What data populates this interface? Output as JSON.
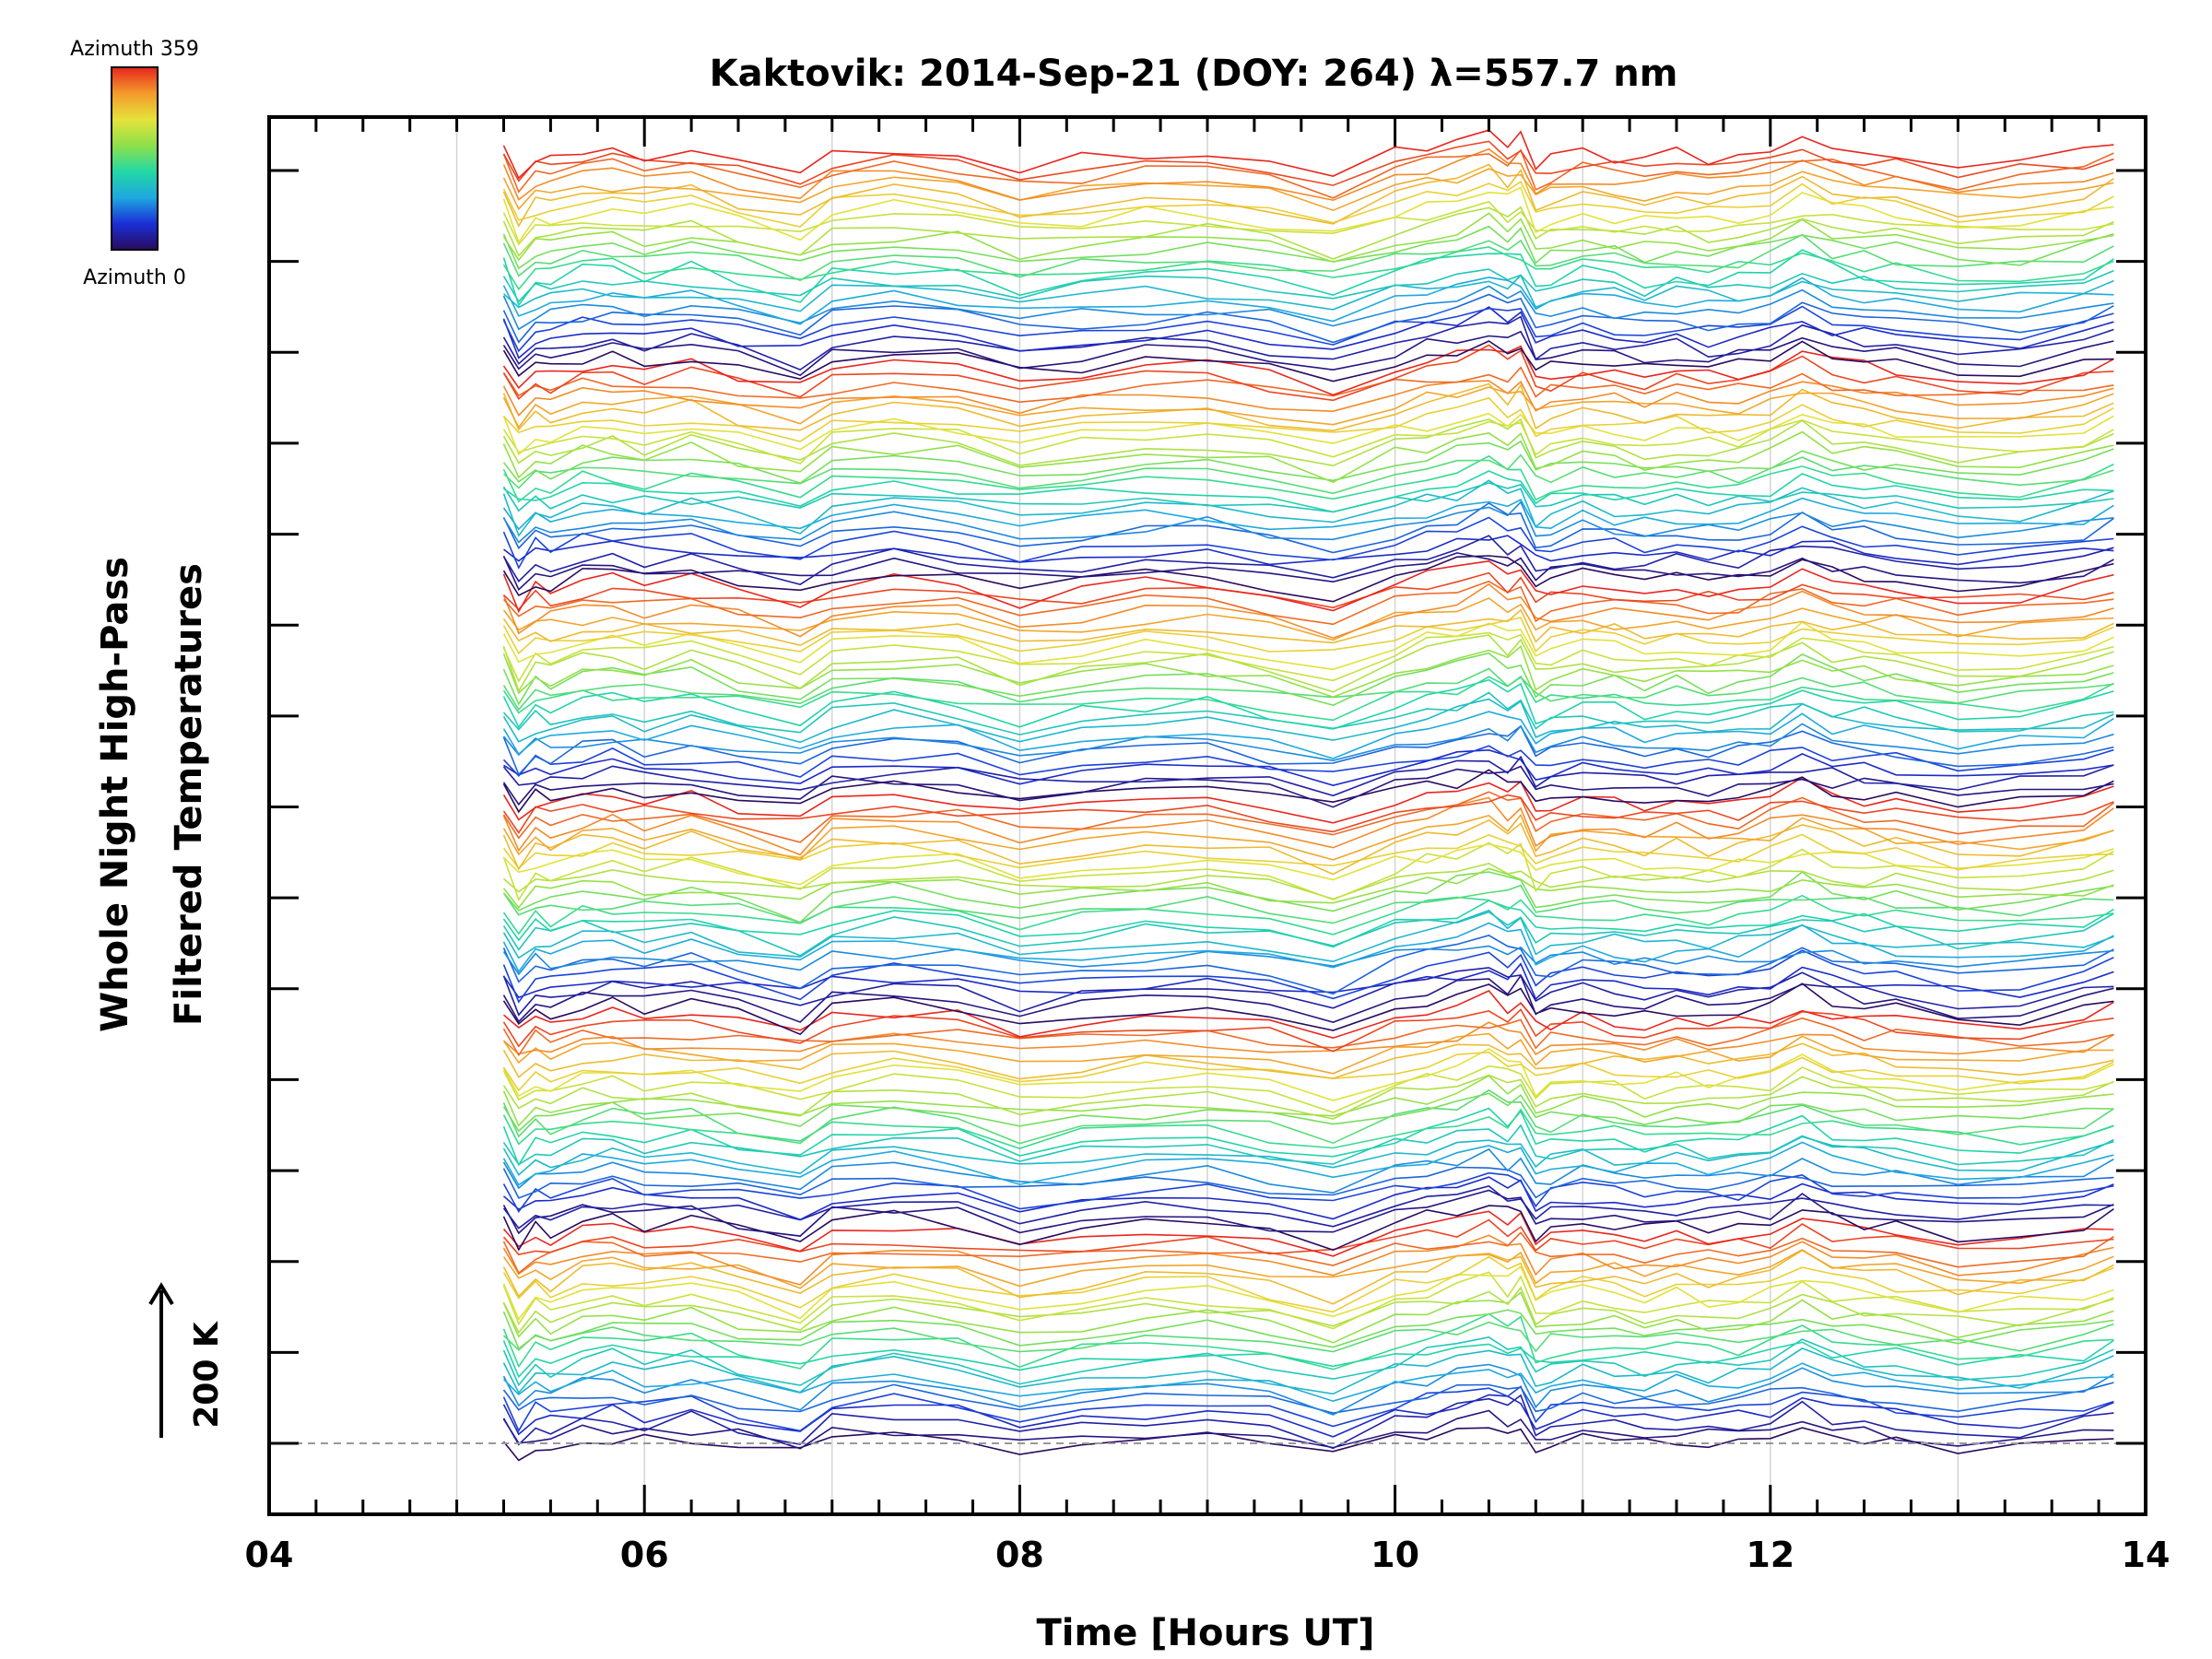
{
  "chart_data": {
    "type": "line",
    "title": "Kaktovik: 2014-Sep-21 (DOY: 264) λ=557.7 nm",
    "xlabel": "Time [Hours UT]",
    "ylabel_line1": "Whole Night High-Pass",
    "ylabel_line2": "Filtered Temperatures",
    "xlim": [
      4,
      14
    ],
    "x_tick_labels": [
      "04",
      "06",
      "08",
      "10",
      "12",
      "14"
    ],
    "x_major_ticks": [
      4,
      6,
      8,
      10,
      12,
      14
    ],
    "x_minor_step": 0.25,
    "vertical_gridlines": [
      5,
      6,
      7,
      8,
      9,
      10,
      11,
      12,
      13
    ],
    "y_tick_count": 15,
    "offset_scale_label": "200 K",
    "colorbar": {
      "label_top": "Azimuth 359",
      "label_bottom": "Azimuth 0",
      "colormap": [
        "#2a0a5e",
        "#1a2fd6",
        "#1ea8e0",
        "#22d8a4",
        "#8ee04a",
        "#e6e23a",
        "#f39a2b",
        "#e8261e"
      ]
    },
    "series_description": "Stacked high-pass filtered temperature traces, one per azimuth, coloured by azimuth (0-359) and vertically offset.",
    "time": [
      5.25,
      5.33,
      5.42,
      5.5,
      5.67,
      5.83,
      6.0,
      6.25,
      6.5,
      6.83,
      7.0,
      7.33,
      7.67,
      8.0,
      8.33,
      8.67,
      9.0,
      9.33,
      9.67,
      10.0,
      10.17,
      10.33,
      10.5,
      10.6,
      10.67,
      10.75,
      10.83,
      11.0,
      11.17,
      11.33,
      11.5,
      11.67,
      11.83,
      12.0,
      12.17,
      12.33,
      12.5,
      12.67,
      13.0,
      13.33,
      13.67,
      13.83
    ],
    "mean_profile": [
      30,
      -40,
      0,
      -10,
      15,
      20,
      5,
      18,
      -5,
      -35,
      10,
      22,
      12,
      -25,
      -5,
      8,
      12,
      -10,
      -40,
      10,
      25,
      38,
      60,
      35,
      50,
      -20,
      -5,
      10,
      2,
      -8,
      5,
      -6,
      0,
      12,
      45,
      18,
      10,
      5,
      -20,
      -15,
      5,
      30
    ],
    "offset_step": 30,
    "series_count": 150
  }
}
